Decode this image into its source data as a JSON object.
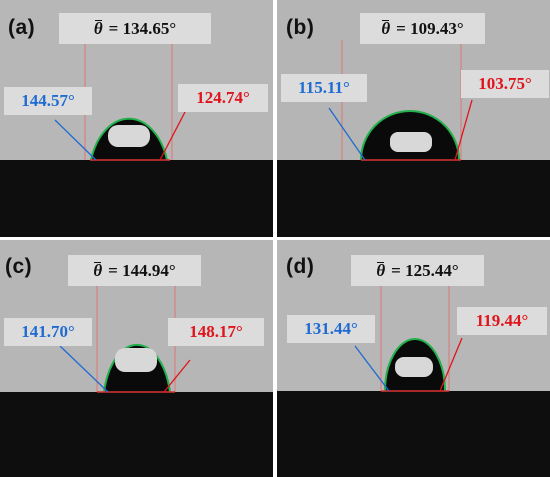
{
  "panels": [
    {
      "id": "a",
      "label": "(a)",
      "mean_symbol": "θ",
      "mean_text": "= 134.65°",
      "left_angle": "144.57°",
      "right_angle": "124.74°"
    },
    {
      "id": "b",
      "label": "(b)",
      "mean_symbol": "θ",
      "mean_text": "= 109.43°",
      "left_angle": "115.11°",
      "right_angle": "103.75°"
    },
    {
      "id": "c",
      "label": "(c)",
      "mean_symbol": "θ",
      "mean_text": "= 144.94°",
      "left_angle": "141.70°",
      "right_angle": "148.17°"
    },
    {
      "id": "d",
      "label": "(d)",
      "mean_symbol": "θ",
      "mean_text": "= 125.44°",
      "left_angle": "131.44°",
      "right_angle": "119.44°"
    }
  ],
  "colors": {
    "left_angle": "#1f6bd1",
    "right_angle": "#e0141c",
    "background": "#b4b4b4",
    "substrate": "#0d0d0d",
    "droplet_edge": "#22b14c"
  }
}
